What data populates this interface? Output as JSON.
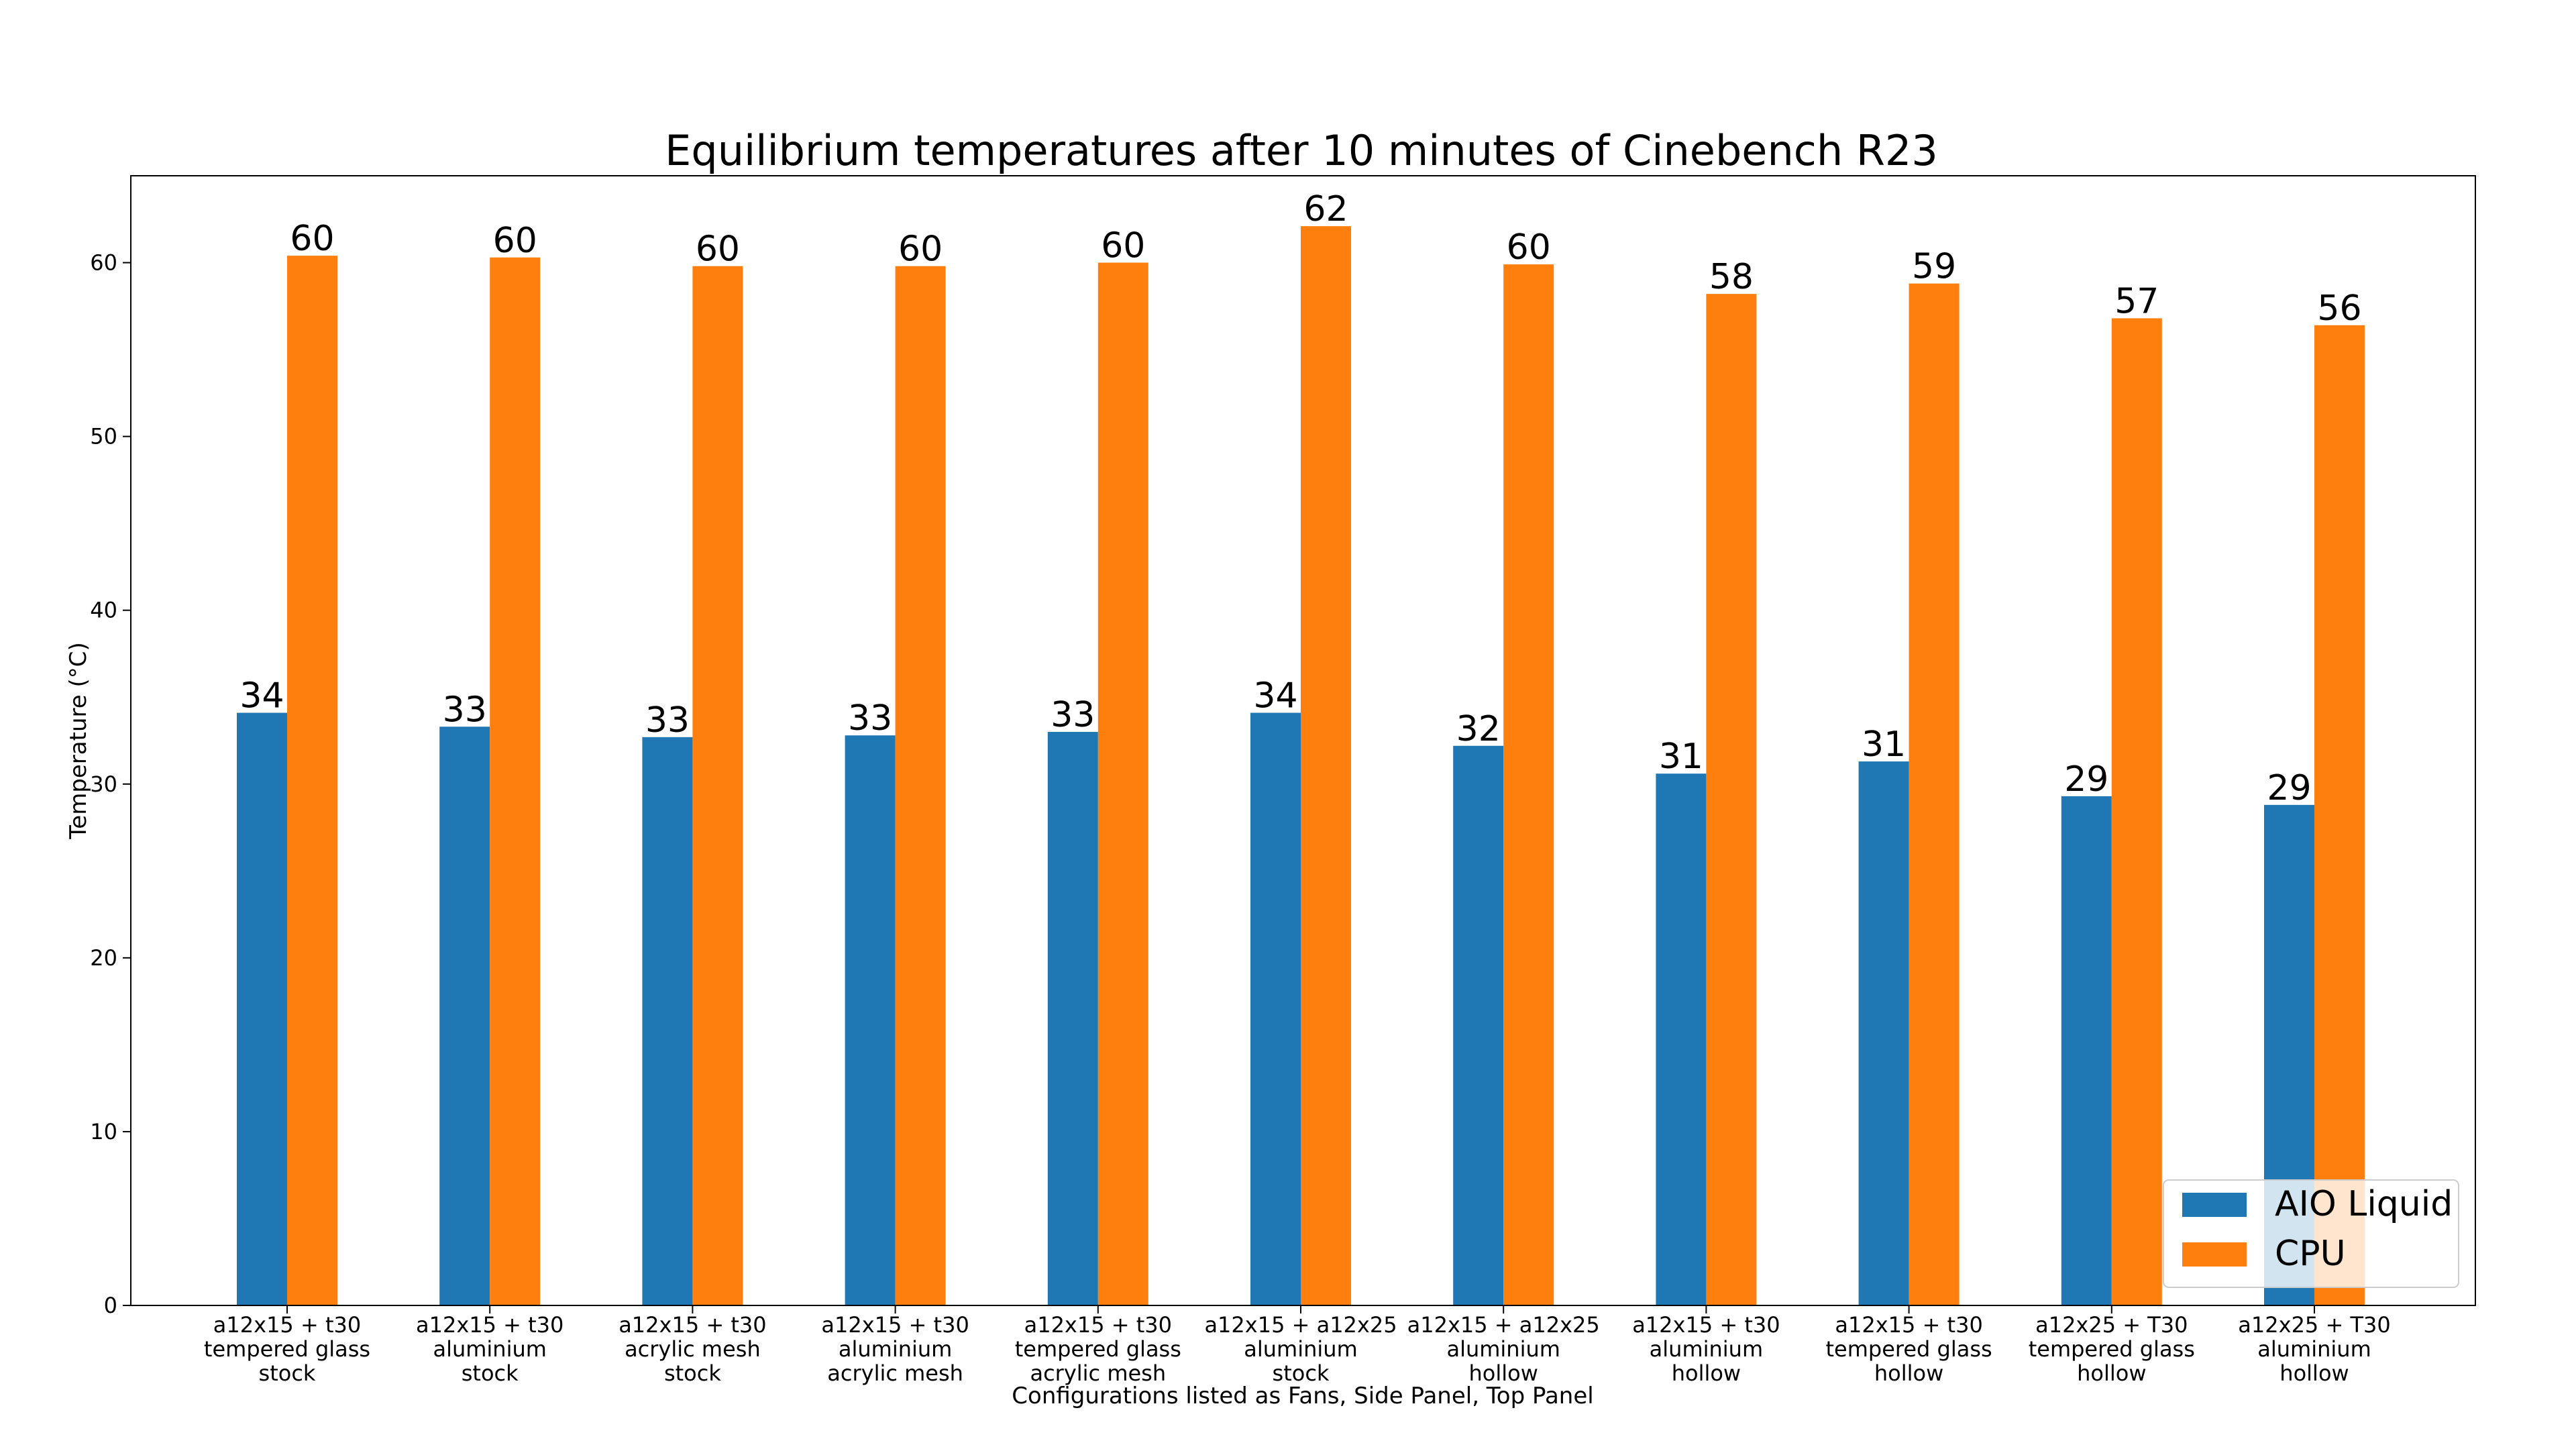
{
  "chart_data": {
    "type": "bar",
    "title": "Equilibrium temperatures after 10 minutes of Cinebench R23",
    "xlabel": "Configurations listed as Fans, Side Panel, Top Panel",
    "ylabel": "Temperature (°C)",
    "ylim": [
      0,
      65
    ],
    "yticks": [
      0,
      10,
      20,
      30,
      40,
      50,
      60
    ],
    "grid": false,
    "legend_position": "lower-right",
    "categories": [
      [
        "a12x15 + t30",
        "tempered glass",
        "stock"
      ],
      [
        "a12x15 + t30",
        "aluminium",
        "stock"
      ],
      [
        "a12x15 + t30",
        "acrylic mesh",
        "stock"
      ],
      [
        "a12x15 + t30",
        "aluminium",
        "acrylic mesh"
      ],
      [
        "a12x15 + t30",
        "tempered glass",
        "acrylic mesh"
      ],
      [
        "a12x15 + a12x25",
        "aluminium",
        "stock"
      ],
      [
        "a12x15 + a12x25",
        "aluminium",
        "hollow"
      ],
      [
        "a12x15 + t30",
        "aluminium",
        "hollow"
      ],
      [
        "a12x15 + t30",
        "tempered glass",
        "hollow"
      ],
      [
        "a12x25 + T30",
        "tempered glass",
        "hollow"
      ],
      [
        "a12x25 + T30",
        "aluminium",
        "hollow"
      ]
    ],
    "series": [
      {
        "name": "AIO Liquid",
        "color": "#1f77b4",
        "values": [
          34.1,
          33.3,
          32.7,
          32.8,
          33.0,
          34.1,
          32.2,
          30.6,
          31.3,
          29.3,
          28.8
        ],
        "labels": [
          "34",
          "33",
          "33",
          "33",
          "33",
          "34",
          "32",
          "31",
          "31",
          "29",
          "29"
        ]
      },
      {
        "name": "CPU",
        "color": "#ff7f0e",
        "values": [
          60.4,
          60.3,
          59.8,
          59.8,
          60.0,
          62.1,
          59.9,
          58.2,
          58.8,
          56.8,
          56.4
        ],
        "labels": [
          "60",
          "60",
          "60",
          "60",
          "60",
          "62",
          "60",
          "58",
          "59",
          "57",
          "56"
        ]
      }
    ]
  }
}
